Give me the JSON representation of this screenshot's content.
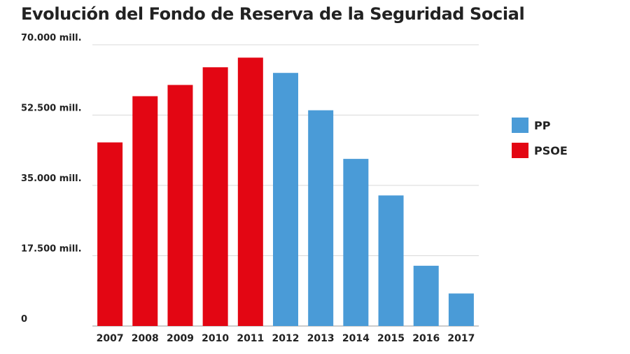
{
  "chart_data": {
    "type": "bar",
    "title": "Evolución del Fondo de Reserva de la Seguridad Social",
    "xlabel": "",
    "ylabel": "",
    "categories": [
      "2007",
      "2008",
      "2009",
      "2010",
      "2011",
      "2012",
      "2013",
      "2014",
      "2015",
      "2016",
      "2017"
    ],
    "series": [
      {
        "name": "PSOE",
        "color": "#e30613",
        "values": [
          45700,
          57200,
          60000,
          64400,
          66800,
          null,
          null,
          null,
          null,
          null,
          null
        ]
      },
      {
        "name": "PP",
        "color": "#4a9bd7",
        "values": [
          null,
          null,
          null,
          null,
          null,
          63000,
          53700,
          41600,
          32500,
          15000,
          8100
        ]
      }
    ],
    "ylim": [
      0,
      70000
    ],
    "yticks": [
      0,
      17500,
      35000,
      52500,
      70000
    ],
    "ytick_labels": [
      "0",
      "17.500 mill.",
      "35.000 mill.",
      "52.500 mill.",
      "70.000 mill."
    ],
    "grid": true,
    "legend": {
      "position": "right",
      "entries": [
        {
          "name": "PP",
          "color": "#4a9bd7"
        },
        {
          "name": "PSOE",
          "color": "#e30613"
        }
      ]
    }
  }
}
